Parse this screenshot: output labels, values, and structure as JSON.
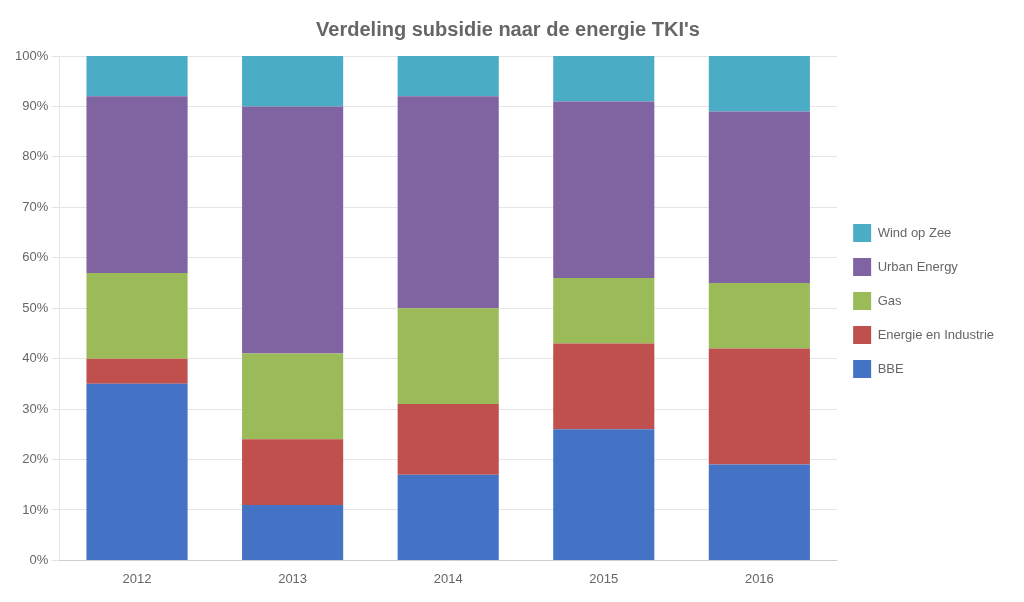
{
  "chart_data": {
    "type": "bar",
    "title": "Verdeling subsidie naar de energie TKI's",
    "categories": [
      "2012",
      "2013",
      "2014",
      "2015",
      "2016"
    ],
    "series": [
      {
        "name": "BBE",
        "color": "#4472C4",
        "values": [
          35,
          11,
          17,
          26,
          19
        ]
      },
      {
        "name": "Energie en Industrie",
        "color": "#C0504D",
        "values": [
          5,
          13,
          14,
          17,
          23
        ]
      },
      {
        "name": "Gas",
        "color": "#9BBB59",
        "values": [
          17,
          17,
          19,
          13,
          13
        ]
      },
      {
        "name": "Urban Energy",
        "color": "#8064A2",
        "values": [
          35,
          49,
          42,
          35,
          34
        ]
      },
      {
        "name": "Wind op Zee",
        "color": "#4BACC6",
        "values": [
          8,
          10,
          8,
          9,
          11
        ]
      }
    ],
    "stacked": true,
    "ylim": [
      0,
      100
    ],
    "yticks": [
      {
        "value": 0,
        "label": "0%"
      },
      {
        "value": 10,
        "label": "10%"
      },
      {
        "value": 20,
        "label": "20%"
      },
      {
        "value": 30,
        "label": "30%"
      },
      {
        "value": 40,
        "label": "40%"
      },
      {
        "value": 50,
        "label": "50%"
      },
      {
        "value": 60,
        "label": "60%"
      },
      {
        "value": 70,
        "label": "70%"
      },
      {
        "value": 80,
        "label": "80%"
      },
      {
        "value": 90,
        "label": "90%"
      },
      {
        "value": 100,
        "label": "100%"
      }
    ],
    "grid": true,
    "legend": "right"
  }
}
